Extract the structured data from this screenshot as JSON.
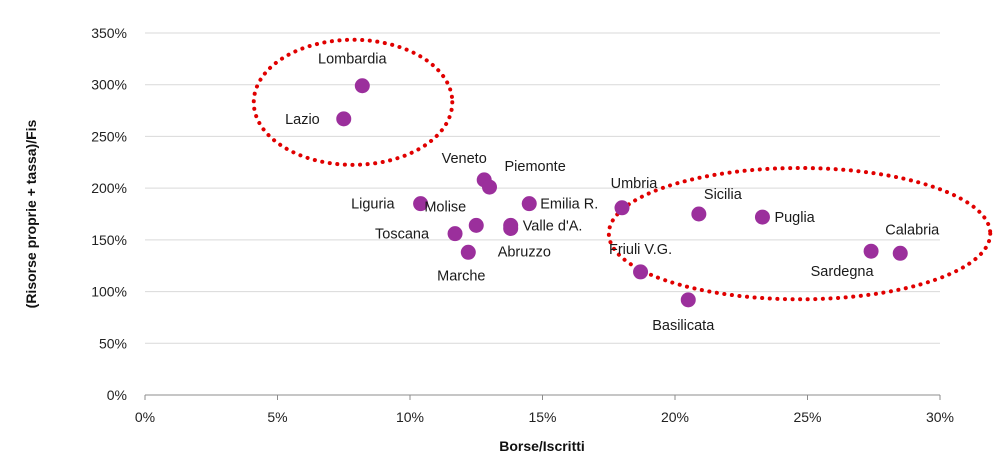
{
  "chart_data": {
    "type": "scatter",
    "title": "",
    "xlabel": "Borse/Iscritti",
    "ylabel": "(Risorse proprie + tassa)/Fis",
    "xlim": [
      0,
      30
    ],
    "ylim": [
      0,
      350
    ],
    "x_ticks": [
      {
        "value": 0,
        "label": "0%"
      },
      {
        "value": 5,
        "label": "5%"
      },
      {
        "value": 10,
        "label": "10%"
      },
      {
        "value": 15,
        "label": "15%"
      },
      {
        "value": 20,
        "label": "20%"
      },
      {
        "value": 25,
        "label": "25%"
      },
      {
        "value": 30,
        "label": "30%"
      }
    ],
    "y_ticks": [
      {
        "value": 0,
        "label": "0%"
      },
      {
        "value": 50,
        "label": "50%"
      },
      {
        "value": 100,
        "label": "100%"
      },
      {
        "value": 150,
        "label": "150%"
      },
      {
        "value": 200,
        "label": "200%"
      },
      {
        "value": 250,
        "label": "250%"
      },
      {
        "value": 300,
        "label": "300%"
      },
      {
        "value": 350,
        "label": "350%"
      }
    ],
    "grid": "horizontal",
    "marker_color": "#9B2F9C",
    "highlight_color": "#E00000",
    "points": [
      {
        "label": "Lombardia",
        "x": 8.2,
        "y": 299
      },
      {
        "label": "Lazio",
        "x": 7.5,
        "y": 267
      },
      {
        "label": "Veneto",
        "x": 12.8,
        "y": 208
      },
      {
        "label": "Piemonte",
        "x": 13.0,
        "y": 201
      },
      {
        "label": "Liguria",
        "x": 10.4,
        "y": 185
      },
      {
        "label": "Emilia R.",
        "x": 14.5,
        "y": 185
      },
      {
        "label": "Umbria",
        "x": 18.0,
        "y": 181
      },
      {
        "label": "Molise",
        "x": 12.5,
        "y": 164
      },
      {
        "label": "Valle d'A.",
        "x": 13.8,
        "y": 164
      },
      {
        "label": "Abruzzo",
        "x": 13.8,
        "y": 161
      },
      {
        "label": "Toscana",
        "x": 11.7,
        "y": 156
      },
      {
        "label": "Marche",
        "x": 12.2,
        "y": 138
      },
      {
        "label": "Friuli V.G.",
        "x": 18.7,
        "y": 119
      },
      {
        "label": "Basilicata",
        "x": 20.5,
        "y": 92
      },
      {
        "label": "Sicilia",
        "x": 20.9,
        "y": 175
      },
      {
        "label": "Puglia",
        "x": 23.3,
        "y": 172
      },
      {
        "label": "Sardegna",
        "x": 27.4,
        "y": 139
      },
      {
        "label": "Calabria",
        "x": 28.5,
        "y": 137
      }
    ],
    "highlight_groups": [
      [
        "Lombardia",
        "Lazio"
      ],
      [
        "Sicilia",
        "Puglia",
        "Sardegna",
        "Calabria"
      ]
    ]
  }
}
